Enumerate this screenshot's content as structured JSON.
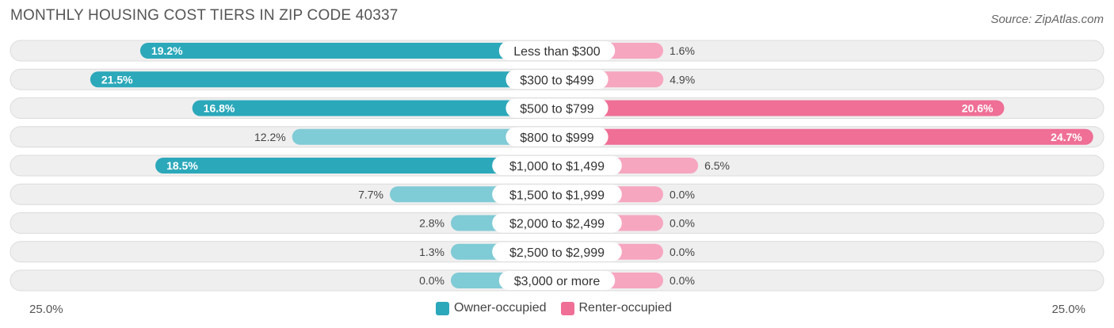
{
  "title": "MONTHLY HOUSING COST TIERS IN ZIP CODE 40337",
  "source": "Source: ZipAtlas.com",
  "colors": {
    "owner": "#2ba8ba",
    "owner_light": "#7fcbd6",
    "renter": "#ef6f96",
    "renter_light": "#f7a6c0",
    "row_bg": "#efefef",
    "row_border": "#dcdcdc"
  },
  "chart_data": {
    "type": "bar",
    "orientation": "horizontal-diverging",
    "categories": [
      "Less than $300",
      "$300 to $499",
      "$500 to $799",
      "$800 to $999",
      "$1,000 to $1,499",
      "$1,500 to $1,999",
      "$2,000 to $2,499",
      "$2,500 to $2,999",
      "$3,000 or more"
    ],
    "series": [
      {
        "name": "Owner-occupied",
        "values": [
          19.2,
          21.5,
          16.8,
          12.2,
          18.5,
          7.7,
          2.8,
          1.3,
          0.0
        ],
        "labels": [
          "19.2%",
          "21.5%",
          "16.8%",
          "12.2%",
          "18.5%",
          "7.7%",
          "2.8%",
          "1.3%",
          "0.0%"
        ]
      },
      {
        "name": "Renter-occupied",
        "values": [
          1.6,
          4.9,
          20.6,
          24.7,
          6.5,
          0.0,
          0.0,
          0.0,
          0.0
        ],
        "labels": [
          "1.6%",
          "4.9%",
          "20.6%",
          "24.7%",
          "6.5%",
          "0.0%",
          "0.0%",
          "0.0%",
          "0.0%"
        ]
      }
    ],
    "axis_max": 25.0,
    "axis_left_label": "25.0%",
    "axis_right_label": "25.0%",
    "legend_position": "bottom-center"
  }
}
